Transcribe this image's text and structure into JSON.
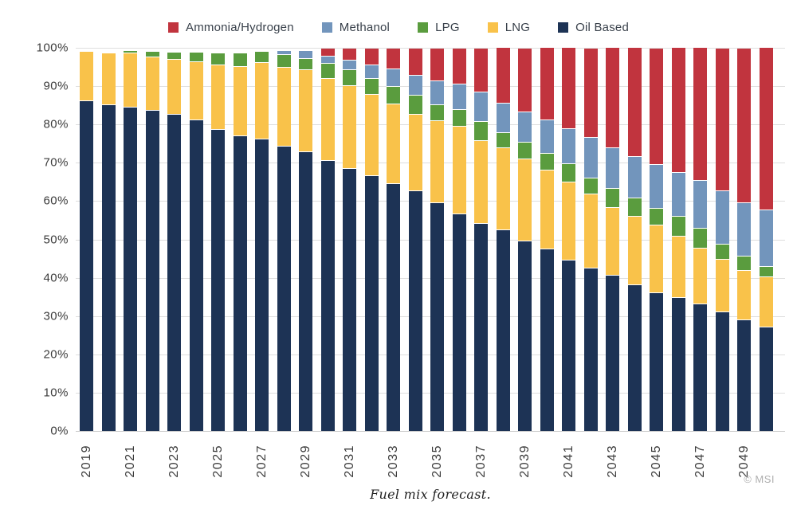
{
  "caption": "Fuel mix forecast.",
  "credit": "© MSI",
  "legend": [
    {
      "label": "Ammonia/Hydrogen",
      "color": "#C1343E"
    },
    {
      "label": "Methanol",
      "color": "#7295BC"
    },
    {
      "label": "LPG",
      "color": "#5A9C3E"
    },
    {
      "label": "LNG",
      "color": "#F9C24A"
    },
    {
      "label": "Oil Based",
      "color": "#1D3355"
    }
  ],
  "y_axis": {
    "ticks": [
      "100%",
      "90%",
      "80%",
      "70%",
      "60%",
      "50%",
      "40%",
      "30%",
      "20%",
      "10%",
      "0%"
    ]
  },
  "colors": {
    "gridline": "#DEDEDE",
    "axis_line": "#CCCCCC",
    "axis_text": "#3C3C3C",
    "legend_text": "#39414B",
    "caption_text": "#222222",
    "credit_text": "#AFAFAF",
    "background": "#FFFFFF"
  },
  "chart_data": {
    "type": "bar",
    "stacked": true,
    "title": "",
    "xlabel": "",
    "ylabel": "",
    "ylim": [
      0,
      100
    ],
    "y_tick_percent": [
      0,
      10,
      20,
      30,
      40,
      50,
      60,
      70,
      80,
      90,
      100
    ],
    "grid": true,
    "legend_position": "top",
    "x": [
      2019,
      2020,
      2021,
      2022,
      2023,
      2024,
      2025,
      2026,
      2027,
      2028,
      2029,
      2030,
      2031,
      2032,
      2033,
      2034,
      2035,
      2036,
      2037,
      2038,
      2039,
      2040,
      2041,
      2042,
      2043,
      2044,
      2045,
      2046,
      2047,
      2048,
      2049,
      2050
    ],
    "x_tick_labels": [
      "2019",
      "2021",
      "2023",
      "2025",
      "2027",
      "2029",
      "2031",
      "2033",
      "2035",
      "2037",
      "2039",
      "2041",
      "2043",
      "2045",
      "2047",
      "2049"
    ],
    "series": [
      {
        "name": "Oil Based",
        "color": "#1D3355",
        "values": [
          86,
          85,
          84.5,
          83.5,
          82.5,
          81,
          78.5,
          77,
          76,
          74.3,
          72.7,
          70.5,
          68.5,
          66.5,
          64.5,
          62.5,
          59.5,
          56.5,
          54,
          52.5,
          49.5,
          47.5,
          44.5,
          42.5,
          40.5,
          38,
          36,
          34.8,
          33,
          31,
          29,
          27
        ]
      },
      {
        "name": "LNG",
        "color": "#F9C24A",
        "values": [
          13,
          13.5,
          14,
          14,
          14.3,
          15.3,
          17,
          18,
          20,
          20.6,
          21.4,
          21.4,
          21.5,
          21.2,
          20.7,
          20,
          21.3,
          22.9,
          21.6,
          21.4,
          21.5,
          20.5,
          20.3,
          19.3,
          17.8,
          18,
          17.6,
          15.9,
          14.7,
          13.6,
          12.8,
          13.1
        ]
      },
      {
        "name": "LPG",
        "color": "#5A9C3E",
        "values": [
          0,
          0,
          0.7,
          1.5,
          2,
          2.5,
          3,
          3.5,
          3,
          3.3,
          3.1,
          4,
          4.2,
          4.3,
          4.7,
          5,
          4.3,
          4.4,
          5,
          3.9,
          4.3,
          4.5,
          4.9,
          4.1,
          4.9,
          4.8,
          4.5,
          5.2,
          5.2,
          4.1,
          3.8,
          2.8
        ]
      },
      {
        "name": "Methanol",
        "color": "#7295BC",
        "values": [
          0,
          0,
          0,
          0,
          0,
          0,
          0,
          0,
          0,
          1,
          1.9,
          1.8,
          2.5,
          3.5,
          4.5,
          5.2,
          6.1,
          6.7,
          7.7,
          7.8,
          7.9,
          8.6,
          9.1,
          10.6,
          10.6,
          10.7,
          11.4,
          11.5,
          12.5,
          13.8,
          13.8,
          14.8
        ]
      },
      {
        "name": "Ammonia/Hydrogen",
        "color": "#C1343E",
        "values": [
          0,
          0,
          0,
          0,
          0,
          0,
          0,
          0,
          0,
          0,
          0,
          2.1,
          3,
          4.3,
          5.5,
          7.2,
          8.6,
          9.4,
          11.6,
          14.5,
          16.6,
          19,
          21.2,
          23.2,
          26.2,
          28.6,
          30.3,
          32.6,
          34.7,
          37.2,
          40.3,
          42.4
        ]
      }
    ]
  }
}
